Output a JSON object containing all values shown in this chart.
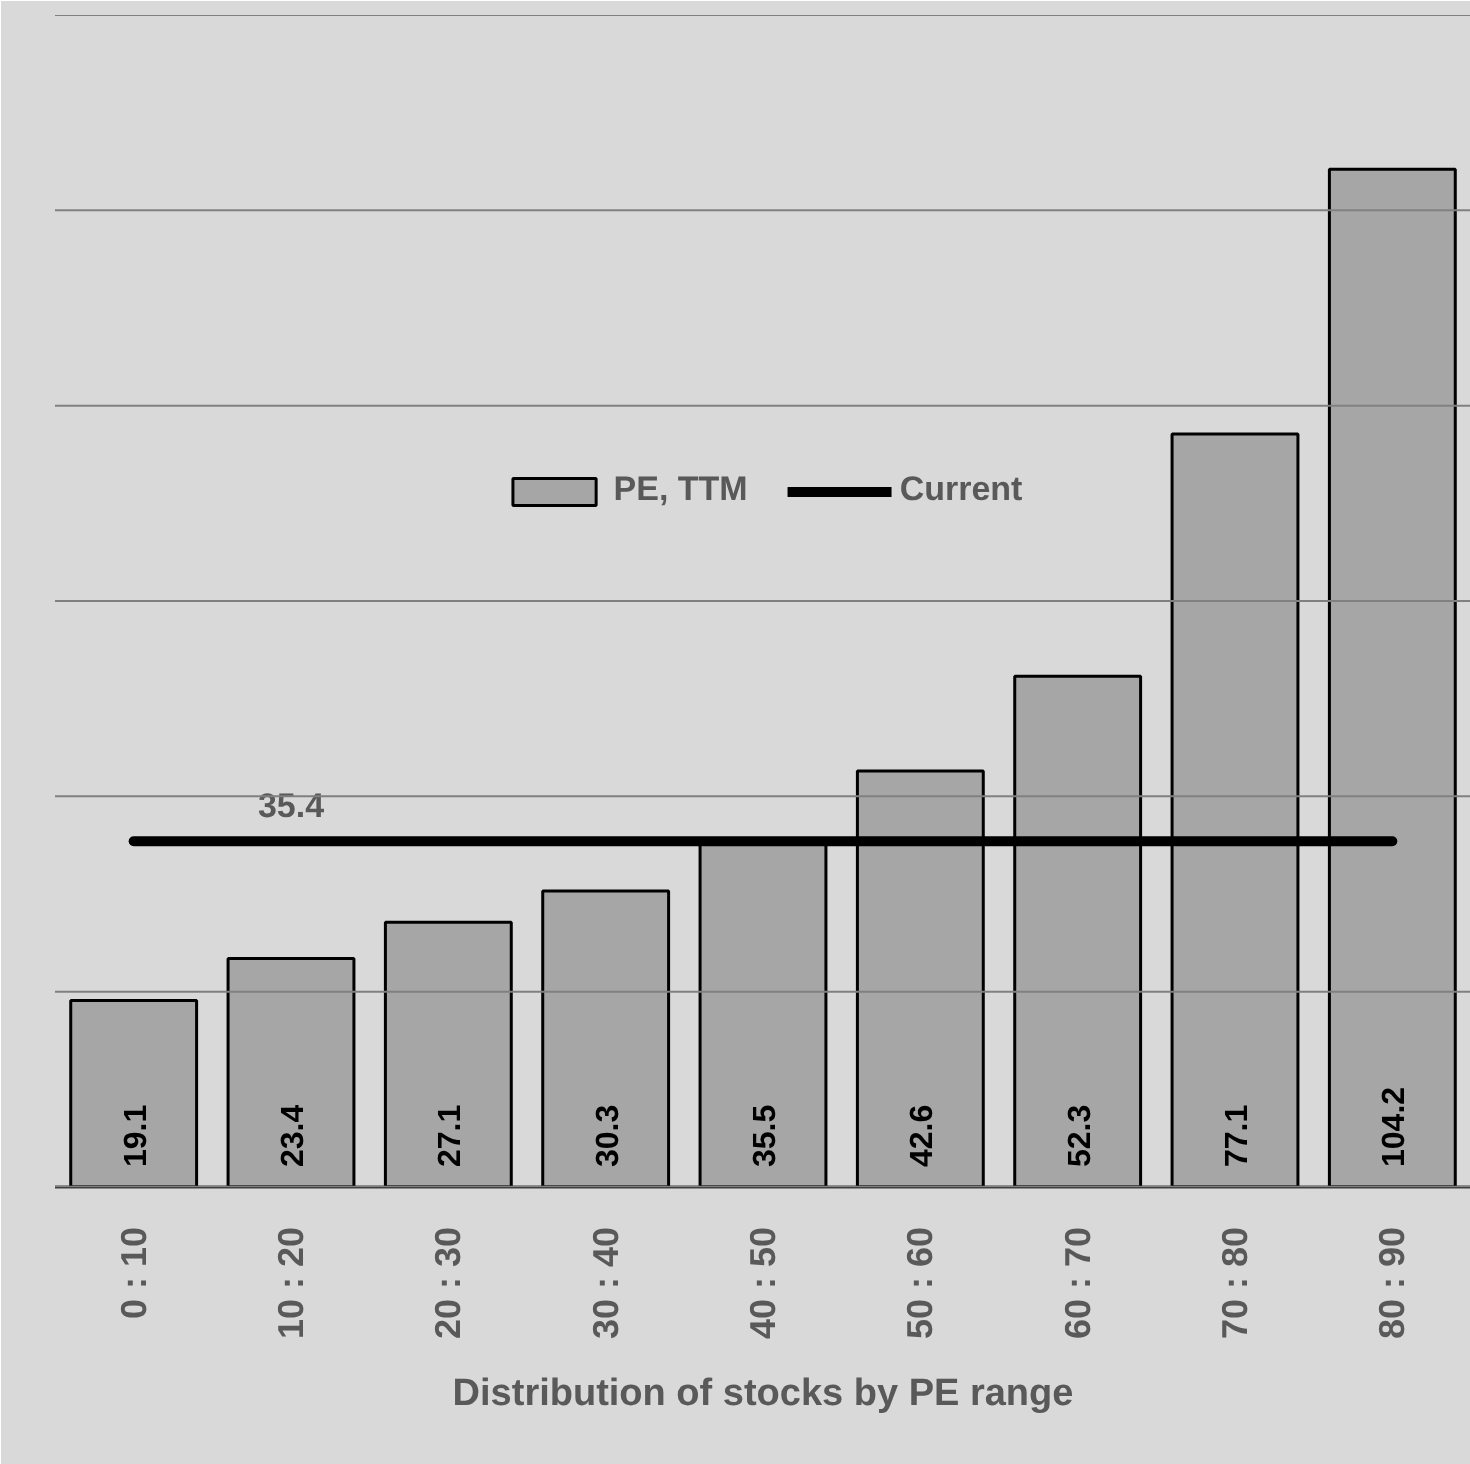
{
  "chart_data": {
    "type": "bar",
    "xlabel": "Distribution of stocks by PE range",
    "categories": [
      "0 : 10",
      "10 : 20",
      "20 : 30",
      "30 : 40",
      "40 : 50",
      "50 : 60",
      "60 : 70",
      "70 : 80",
      "80 : 90"
    ],
    "series": [
      {
        "name": "PE, TTM",
        "color": "#a6a6a6",
        "values": [
          19.1,
          23.4,
          27.1,
          30.3,
          35.5,
          42.6,
          52.3,
          77.1,
          104.2
        ],
        "value_labels": [
          "19.1",
          "23.4",
          "27.1",
          "30.3",
          "35.5",
          "42.6",
          "52.3",
          "77.1",
          "104.2"
        ]
      },
      {
        "name": "Current",
        "type": "line",
        "color": "#000000",
        "values": [
          35.4,
          35.4,
          35.4,
          35.4,
          35.4,
          35.4,
          35.4,
          35.4,
          35.4
        ],
        "value_labels": [
          null,
          "35.4",
          null,
          null,
          null,
          null,
          null,
          null,
          null
        ]
      }
    ],
    "ylim": [
      0,
      120
    ],
    "yticks": [
      {
        "value": 0,
        "label": null
      },
      {
        "value": 20,
        "label": null
      },
      {
        "value": 40,
        "label": null
      },
      {
        "value": 60,
        "label": null
      },
      {
        "value": 80,
        "label": null
      },
      {
        "value": 100,
        "label": null
      },
      {
        "value": 120,
        "label": null
      }
    ],
    "grid": "y",
    "legend": "center",
    "tick_labels": "x"
  }
}
